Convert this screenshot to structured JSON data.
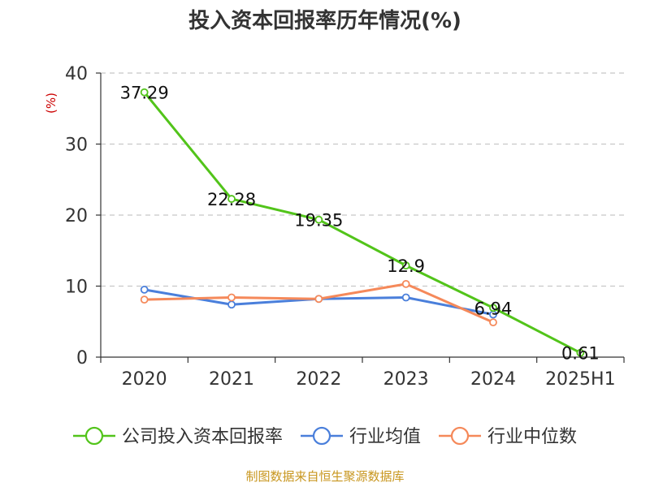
{
  "chart_data": {
    "type": "line",
    "title": "投入资本回报率历年情况(%)",
    "ylabel": "(%)",
    "xlabel": "",
    "categories": [
      "2020",
      "2021",
      "2022",
      "2023",
      "2024",
      "2025H1"
    ],
    "ylim": [
      0,
      40
    ],
    "yticks": [
      0,
      10,
      20,
      30,
      40
    ],
    "grid": true,
    "legend_position": "bottom",
    "series": [
      {
        "name": "公司投入资本回报率",
        "color": "#52c41a",
        "values": [
          37.29,
          22.28,
          19.35,
          12.9,
          6.94,
          0.61
        ],
        "labels": [
          "37.29",
          "22.28",
          "19.35",
          "12.9",
          "6.94",
          "0.61"
        ]
      },
      {
        "name": "行业均值",
        "color": "#4a7fdb",
        "values": [
          9.5,
          7.4,
          8.2,
          8.4,
          6.0,
          null
        ]
      },
      {
        "name": "行业中位数",
        "color": "#f5895a",
        "values": [
          8.1,
          8.4,
          8.2,
          10.3,
          4.9,
          null
        ]
      }
    ],
    "source": "制图数据来自恒生聚源数据库"
  }
}
